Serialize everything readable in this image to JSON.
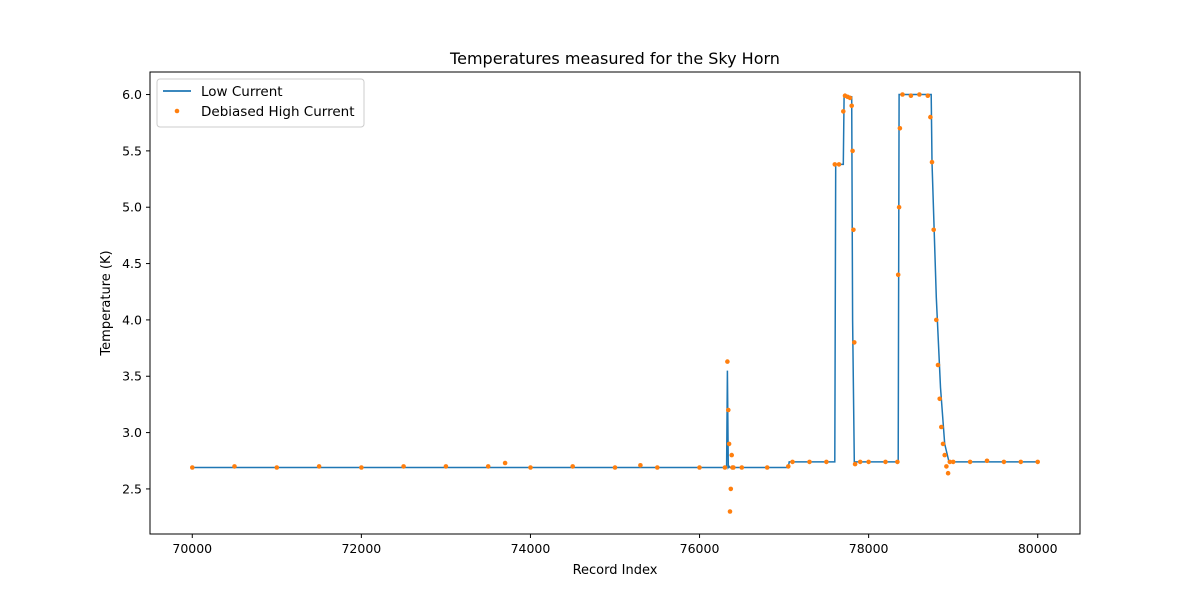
{
  "chart_data": {
    "type": "line",
    "title": "Temperatures measured for the Sky Horn",
    "xlabel": "Record Index",
    "ylabel": "Temperature (K)",
    "xlim": [
      69500,
      80500
    ],
    "ylim": [
      2.1,
      6.2
    ],
    "xticks": [
      70000,
      72000,
      74000,
      76000,
      78000,
      80000
    ],
    "yticks": [
      2.5,
      3.0,
      3.5,
      4.0,
      4.5,
      5.0,
      5.5,
      6.0
    ],
    "grid": false,
    "legend_position": "top-left",
    "series": [
      {
        "name": "Low Current",
        "style": "line",
        "color": "#1f77b4",
        "x": [
          70000,
          76320,
          76330,
          76340,
          76350,
          76360,
          77050,
          77060,
          77600,
          77610,
          77700,
          77710,
          77800,
          77810,
          77830,
          77840,
          78350,
          78360,
          78740,
          78750,
          78800,
          78850,
          78900,
          78950,
          79000,
          80000
        ],
        "y": [
          2.69,
          2.69,
          3.55,
          2.69,
          2.7,
          2.69,
          2.69,
          2.74,
          2.74,
          5.38,
          5.38,
          5.99,
          5.98,
          4.0,
          2.74,
          2.74,
          2.74,
          6.0,
          6.0,
          5.4,
          4.2,
          3.4,
          2.9,
          2.74,
          2.74,
          2.74
        ]
      },
      {
        "name": "Debiased High Current",
        "style": "scatter",
        "color": "#ff7f0e",
        "x": [
          70000,
          70500,
          71000,
          71500,
          72000,
          72500,
          73000,
          73500,
          73700,
          74000,
          74500,
          75000,
          75300,
          75500,
          76000,
          76300,
          76330,
          76340,
          76350,
          76360,
          76370,
          76380,
          76390,
          76400,
          76500,
          76800,
          77050,
          77100,
          77300,
          77500,
          77600,
          77650,
          77700,
          77720,
          77750,
          77780,
          77800,
          77810,
          77820,
          77830,
          77840,
          77900,
          78000,
          78200,
          78340,
          78350,
          78360,
          78370,
          78400,
          78500,
          78600,
          78700,
          78730,
          78750,
          78770,
          78800,
          78820,
          78840,
          78860,
          78880,
          78900,
          78920,
          78940,
          78960,
          79000,
          79200,
          79400,
          79600,
          79800,
          80000
        ],
        "y": [
          2.69,
          2.7,
          2.69,
          2.7,
          2.69,
          2.7,
          2.7,
          2.7,
          2.73,
          2.69,
          2.7,
          2.69,
          2.71,
          2.69,
          2.69,
          2.69,
          3.63,
          3.2,
          2.9,
          2.3,
          2.5,
          2.8,
          2.69,
          2.69,
          2.69,
          2.69,
          2.7,
          2.74,
          2.74,
          2.74,
          5.38,
          5.38,
          5.85,
          5.99,
          5.98,
          5.97,
          5.9,
          5.5,
          4.8,
          3.8,
          2.72,
          2.74,
          2.74,
          2.74,
          2.74,
          4.4,
          5.0,
          5.7,
          6.0,
          5.99,
          6.0,
          5.99,
          5.8,
          5.4,
          4.8,
          4.0,
          3.6,
          3.3,
          3.05,
          2.9,
          2.8,
          2.7,
          2.64,
          2.74,
          2.74,
          2.74,
          2.75,
          2.74,
          2.74,
          2.74
        ]
      }
    ]
  }
}
